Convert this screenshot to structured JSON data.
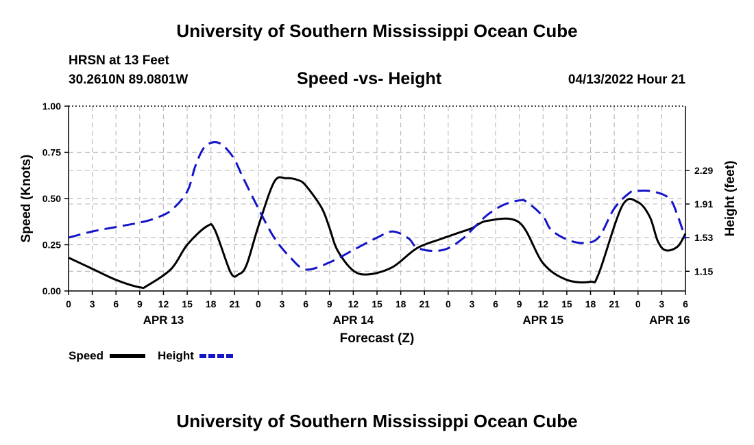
{
  "header": {
    "title": "University of Southern Mississippi Ocean Cube",
    "station": "HRSN at 13 Feet",
    "coords": "30.2610N  89.0801W",
    "datetime": "04/13/2022 Hour 21"
  },
  "footer": {
    "title": "University of Southern Mississippi Ocean Cube"
  },
  "colors": {
    "speed": "#000000",
    "height": "#1414c8",
    "grid": "#bdbdbd"
  },
  "chart_data": {
    "type": "line",
    "title": "Speed -vs- Height",
    "xlabel": "Forecast (Z)",
    "ylabel": "Speed (Knots)",
    "y2label": "Height (feet)",
    "xlim": [
      0,
      78
    ],
    "ylim": [
      0,
      1.0
    ],
    "y2lim": [
      0.928,
      3.015
    ],
    "grid": true,
    "x_ticks": [
      0,
      3,
      6,
      9,
      12,
      15,
      18,
      21,
      24,
      27,
      30,
      33,
      36,
      39,
      42,
      45,
      48,
      51,
      54,
      57,
      60,
      63,
      66,
      69,
      72,
      75,
      78
    ],
    "x_tick_labels": [
      "0",
      "3",
      "6",
      "9",
      "12",
      "15",
      "18",
      "21",
      "0",
      "3",
      "6",
      "9",
      "12",
      "15",
      "18",
      "21",
      "0",
      "3",
      "6",
      "9",
      "12",
      "15",
      "18",
      "21",
      "0",
      "3",
      "6"
    ],
    "date_labels": [
      {
        "label": "APR 13",
        "x": 12
      },
      {
        "label": "APR 14",
        "x": 36
      },
      {
        "label": "APR 15",
        "x": 60
      },
      {
        "label": "APR 16",
        "x": 76
      }
    ],
    "y_ticks": [
      {
        "value": 0.0,
        "label": "0.00"
      },
      {
        "value": 0.25,
        "label": "0.25"
      },
      {
        "value": 0.5,
        "label": "0.50"
      },
      {
        "value": 0.75,
        "label": "0.75"
      },
      {
        "value": 1.0,
        "label": "1.00"
      }
    ],
    "y2_ticks": [
      {
        "value": 1.15,
        "label": "1.15"
      },
      {
        "value": 1.53,
        "label": "1.53"
      },
      {
        "value": 1.91,
        "label": "1.91"
      },
      {
        "value": 2.29,
        "label": "2.29"
      }
    ],
    "series": [
      {
        "name": "Speed",
        "axis": "left",
        "style": "solid",
        "x": [
          0,
          3,
          6,
          9,
          10,
          13,
          15,
          17.5,
          18.5,
          20.5,
          21.5,
          22.5,
          24,
          26,
          27.5,
          29,
          30,
          32,
          33,
          34,
          36,
          38,
          41,
          44,
          47,
          49,
          51,
          53,
          57,
          60,
          63,
          66,
          67,
          70,
          72,
          73.5,
          74.5,
          75.5,
          77,
          78
        ],
        "y": [
          0.18,
          0.12,
          0.06,
          0.02,
          0.03,
          0.12,
          0.25,
          0.35,
          0.33,
          0.1,
          0.09,
          0.14,
          0.35,
          0.59,
          0.61,
          0.6,
          0.57,
          0.45,
          0.34,
          0.22,
          0.11,
          0.09,
          0.13,
          0.23,
          0.28,
          0.31,
          0.34,
          0.38,
          0.37,
          0.15,
          0.06,
          0.05,
          0.09,
          0.46,
          0.48,
          0.4,
          0.27,
          0.22,
          0.24,
          0.31
        ]
      },
      {
        "name": "Height",
        "axis": "right",
        "style": "dashed",
        "x": [
          0,
          3,
          6,
          9,
          11,
          13,
          15,
          16,
          17,
          18,
          19,
          20,
          21,
          22,
          24,
          26,
          28,
          30,
          33,
          36,
          39,
          41,
          43,
          44,
          46,
          48,
          50,
          51,
          53,
          55,
          57,
          58,
          60,
          61,
          63,
          65,
          67,
          69,
          71,
          72,
          74,
          76,
          77,
          78
        ],
        "y": [
          1.53,
          1.6,
          1.65,
          1.7,
          1.75,
          1.84,
          2.05,
          2.33,
          2.53,
          2.6,
          2.6,
          2.53,
          2.41,
          2.22,
          1.86,
          1.53,
          1.31,
          1.17,
          1.25,
          1.39,
          1.53,
          1.6,
          1.52,
          1.42,
          1.38,
          1.41,
          1.53,
          1.62,
          1.79,
          1.9,
          1.95,
          1.93,
          1.77,
          1.62,
          1.51,
          1.47,
          1.53,
          1.86,
          2.04,
          2.06,
          2.05,
          1.97,
          1.78,
          1.52
        ]
      }
    ],
    "legend": [
      {
        "label": "Speed",
        "style": "solid"
      },
      {
        "label": "Height",
        "style": "dashed"
      }
    ],
    "legend_position": "bottom-left"
  }
}
